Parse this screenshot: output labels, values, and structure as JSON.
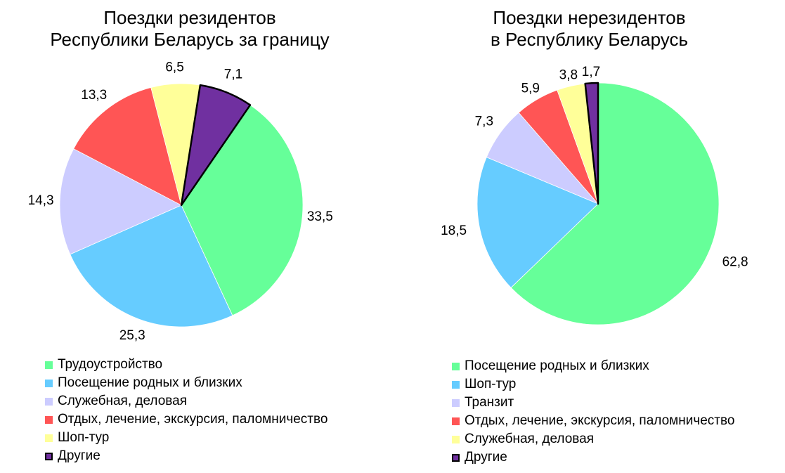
{
  "chart_data": [
    {
      "type": "pie",
      "title": [
        "Поездки резидентов",
        "Республики Беларусь за границу"
      ],
      "categories": [
        "Трудоустройство",
        "Посещение родных и близких",
        "Служебная, деловая",
        "Отдых, лечение, экскурсия, паломничество",
        "Шоп-тур",
        "Другие"
      ],
      "values": [
        33.5,
        25.3,
        14.3,
        13.3,
        6.5,
        7.1
      ],
      "value_labels": [
        "33,5",
        "25,3",
        "14,3",
        "13,3",
        "6,5",
        "7,1"
      ],
      "colors": [
        "#66ff99",
        "#66ccff",
        "#ccccff",
        "#ff5555",
        "#ffff99",
        "#7030a0"
      ],
      "legend_placement": "bottom"
    },
    {
      "type": "pie",
      "title": [
        "Поездки нерезидентов",
        "в Республику Беларусь"
      ],
      "categories": [
        "Посещение родных и близких",
        "Шоп-тур",
        "Транзит",
        "Отдых, лечение, экскурсия, паломничество",
        "Служебная, деловая",
        "Другие"
      ],
      "values": [
        62.8,
        18.5,
        7.3,
        5.9,
        3.8,
        1.7
      ],
      "value_labels": [
        "62,8",
        "18,5",
        "7,3",
        "5,9",
        "3,8",
        "1,7"
      ],
      "colors": [
        "#66ff99",
        "#66ccff",
        "#ccccff",
        "#ff5555",
        "#ffff99",
        "#7030a0"
      ],
      "legend_placement": "bottom"
    }
  ]
}
